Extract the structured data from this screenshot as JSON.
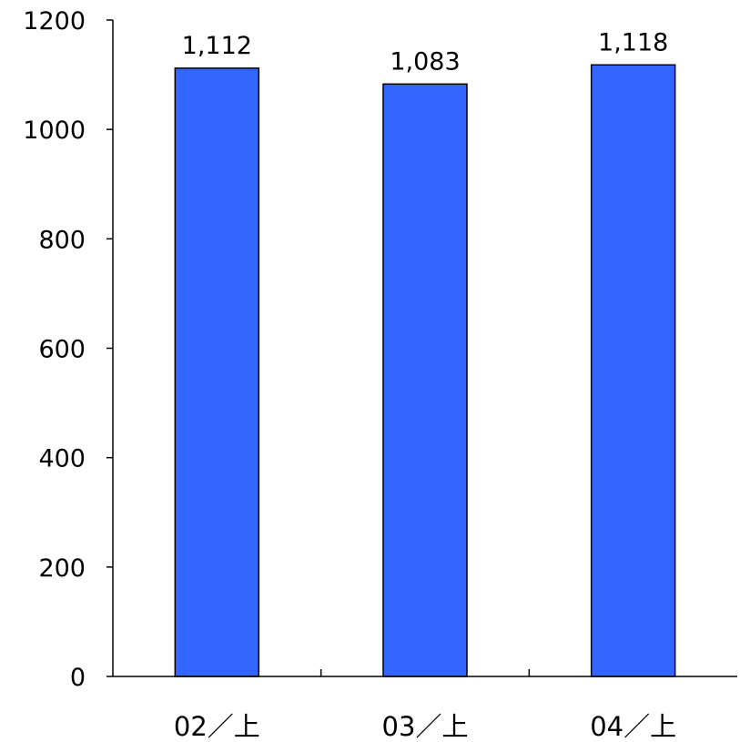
{
  "chart_data": {
    "type": "bar",
    "categories": [
      "02／上",
      "03／上",
      "04／上"
    ],
    "values": [
      1112,
      1083,
      1118
    ],
    "value_labels": [
      "1,112",
      "1,083",
      "1,118"
    ],
    "ylim": [
      0,
      1200
    ],
    "yticks": [
      0,
      200,
      400,
      600,
      800,
      1000,
      1200
    ],
    "grid": false,
    "legend": "none",
    "bar_color": "#3366ff"
  }
}
